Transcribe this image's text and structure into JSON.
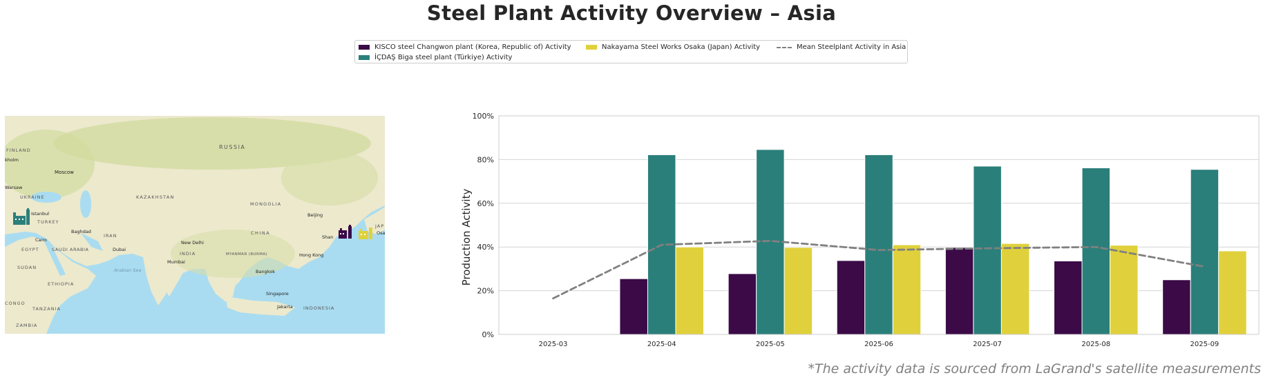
{
  "title": "Steel Plant Activity Overview – Asia",
  "legend": {
    "items": [
      {
        "label": "KISCO steel Changwon plant (Korea, Republic of) Activity",
        "color": "#3b0a47",
        "kind": "bar"
      },
      {
        "label": "Nakayama Steel Works Osaka (Japan) Activity",
        "color": "#e0d13c",
        "kind": "bar"
      },
      {
        "label": "Mean Steelplant Activity in Asia",
        "color": "#808080",
        "kind": "dashed-line"
      },
      {
        "label": "İÇDAŞ Biga steel plant (Türkiye) Activity",
        "color": "#2b7f7a",
        "kind": "bar"
      }
    ]
  },
  "map": {
    "labels": {
      "russia": "RUSSIA",
      "finland": "FINLAND",
      "stockholm": "kholm",
      "moscow": "Moscow",
      "warsaw": "Warsaw",
      "ukraine": "UKRAINE",
      "kazakhstan": "KAZAKHSTAN",
      "mongolia": "MONGOLIA",
      "istanbul": "Istanbul",
      "turkey": "TURKEY",
      "baghdad": "Baghdad",
      "iran": "IRAN",
      "cairo": "Cairo",
      "egypt": "EGYPT",
      "saudi": "SAUDI ARABIA",
      "dubai": "Dubai",
      "newdelhi": "New Delhi",
      "india": "INDIA",
      "mumbai": "Mumbai",
      "arabiansea": "Arabian Sea",
      "china": "CHINA",
      "beijing": "Beijing",
      "shanghai": "Shan",
      "myanmar": "MYANMAR (BURMA)",
      "hongkong": "Hong Kong",
      "bangkok": "Bangkok",
      "sudan": "SUDAN",
      "ethiopia": "ETHIOPIA",
      "singapore": "Singapore",
      "jakarta": "Jakarta",
      "indonesia": "INDONESIA",
      "congo": "CONGO",
      "tanzania": "TANZANIA",
      "zambia": "ZAMBIA",
      "japan": "JAP",
      "osaka": "Osak"
    },
    "markers": [
      {
        "plant": "İÇDAŞ Biga steel plant (Türkiye)",
        "color": "#2b7f7a",
        "icon": "factory-icon"
      },
      {
        "plant": "KISCO steel Changwon plant (Korea, Republic of)",
        "color": "#3b0a47",
        "icon": "factory-icon"
      },
      {
        "plant": "Nakayama Steel Works Osaka (Japan)",
        "color": "#e0d13c",
        "icon": "factory-icon"
      }
    ]
  },
  "chart_data": {
    "type": "bar",
    "categories": [
      "2025-03",
      "2025-04",
      "2025-05",
      "2025-06",
      "2025-07",
      "2025-08",
      "2025-09"
    ],
    "series": [
      {
        "name": "KISCO steel Changwon plant (Korea, Republic of) Activity",
        "color": "#3b0a47",
        "values": [
          null,
          25.5,
          27.8,
          33.8,
          39.8,
          33.6,
          25.0
        ]
      },
      {
        "name": "İÇDAŞ Biga steel plant (Türkiye) Activity",
        "color": "#2b7f7a",
        "values": [
          null,
          82.2,
          84.6,
          82.2,
          77.0,
          76.2,
          75.5
        ]
      },
      {
        "name": "Nakayama Steel Works Osaka (Japan) Activity",
        "color": "#e0d13c",
        "values": [
          null,
          40.0,
          39.8,
          41.0,
          41.6,
          40.8,
          38.2
        ]
      }
    ],
    "line": {
      "name": "Mean Steelplant Activity in Asia",
      "color": "#808080",
      "style": "dashed",
      "values": [
        16.5,
        41.0,
        42.8,
        38.6,
        39.4,
        40.0,
        31.0
      ]
    },
    "ylabel": "Production Activity",
    "ylim": [
      0,
      100
    ],
    "yticks": [
      0,
      20,
      40,
      60,
      80,
      100
    ],
    "ytick_labels": [
      "0%",
      "20%",
      "40%",
      "60%",
      "80%",
      "100%"
    ],
    "grid": "horizontal"
  },
  "footnote": "*The activity data is sourced from LaGrand's satellite measurements"
}
